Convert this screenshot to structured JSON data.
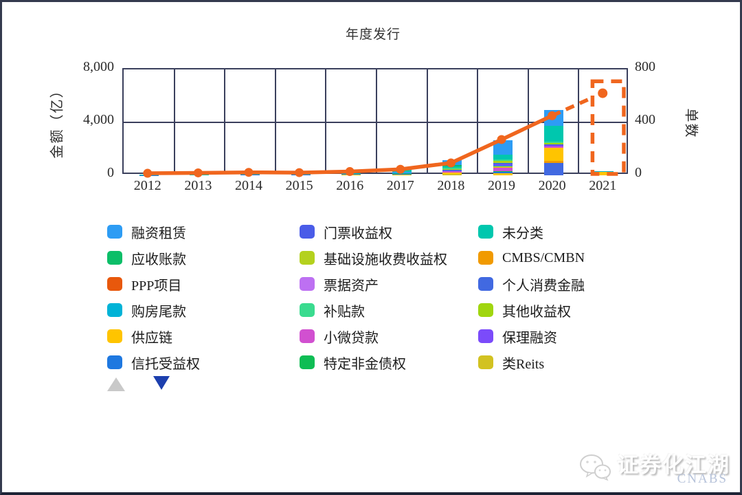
{
  "title": "年度发行",
  "chart_data": {
    "type": "combo",
    "bar_type": "stacked",
    "categories": [
      "2012",
      "2013",
      "2014",
      "2015",
      "2016",
      "2017",
      "2018",
      "2019",
      "2020",
      "2021"
    ],
    "left_axis": {
      "label": "金额（亿）",
      "max": 8000,
      "ticks": [
        {
          "v": 0,
          "label": "0"
        },
        {
          "v": 4000,
          "label": "4,000"
        },
        {
          "v": 8000,
          "label": "8,000"
        }
      ]
    },
    "right_axis": {
      "label": "单数",
      "max": 800,
      "ticks": [
        {
          "v": 0,
          "label": "0"
        },
        {
          "v": 400,
          "label": "400"
        },
        {
          "v": 800,
          "label": "800"
        }
      ]
    },
    "grid": true,
    "series_colors": {
      "融资租赁": "#2D9CF4",
      "应收账款": "#0CBE68",
      "PPP项目": "#E8580C",
      "购房尾款": "#00B3D7",
      "供应链": "#FFC400",
      "信托受益权": "#1E78E0",
      "门票收益权": "#4A5CE8",
      "基础设施收费收益权": "#B4D11E",
      "票据资产": "#BD70F2",
      "补贴款": "#3ADB8F",
      "小微贷款": "#D150D0",
      "特定非金债权": "#0EBD54",
      "未分类": "#00C7AE",
      "CMBS/CMBN": "#F19A00",
      "个人消费金融": "#4169E1",
      "其他收益权": "#A0D60F",
      "保理融资": "#7B4BFA",
      "类Reits": "#D2C221"
    },
    "stacks_bottom_to_top": {
      "2012": [
        [
          "信托受益权",
          20
        ],
        [
          "未分类",
          20
        ]
      ],
      "2013": [
        [
          "信托受益权",
          30
        ],
        [
          "未分类",
          30
        ]
      ],
      "2014": [
        [
          "信托受益权",
          40
        ],
        [
          "未分类",
          50
        ]
      ],
      "2015": [
        [
          "供应链",
          30
        ],
        [
          "信托受益权",
          30
        ],
        [
          "未分类",
          60
        ]
      ],
      "2016": [
        [
          "应收账款",
          30
        ],
        [
          "供应链",
          30
        ],
        [
          "信托受益权",
          40
        ],
        [
          "未分类",
          80
        ]
      ],
      "2017": [
        [
          "供应链",
          60
        ],
        [
          "信托受益权",
          50
        ],
        [
          "应收账款",
          60
        ],
        [
          "融资租赁",
          80
        ],
        [
          "未分类",
          180
        ]
      ],
      "2018": [
        [
          "类Reits",
          80
        ],
        [
          "供应链",
          120
        ],
        [
          "小微贷款",
          130
        ],
        [
          "个人消费金融",
          90
        ],
        [
          "基础设施收费收益权",
          60
        ],
        [
          "补贴款",
          70
        ],
        [
          "未分类",
          130
        ],
        [
          "应收账款",
          100
        ],
        [
          "融资租赁",
          350
        ]
      ],
      "2019": [
        [
          "供应链",
          140
        ],
        [
          "信托受益权",
          100
        ],
        [
          "特定非金债权",
          80
        ],
        [
          "小微贷款",
          230
        ],
        [
          "类Reits",
          110
        ],
        [
          "购房尾款",
          90
        ],
        [
          "保理融资",
          100
        ],
        [
          "个人消费金融",
          100
        ],
        [
          "基础设施收费收益权",
          70
        ],
        [
          "其他收益权",
          80
        ],
        [
          "补贴款",
          100
        ],
        [
          "未分类",
          350
        ],
        [
          "融资租赁",
          1100
        ]
      ],
      "2020": [
        [
          "个人消费金融",
          930
        ],
        [
          "CMBS/CMBN",
          180
        ],
        [
          "供应链",
          950
        ],
        [
          "小微贷款",
          100
        ],
        [
          "保理融资",
          100
        ],
        [
          "门票收益权",
          100
        ],
        [
          "其他收益权",
          80
        ],
        [
          "补贴款",
          90
        ],
        [
          "未分类",
          1200
        ],
        [
          "融资租赁",
          1200
        ]
      ],
      "2021": [
        [
          "供应链",
          260
        ],
        [
          "购房尾款",
          70
        ]
      ]
    },
    "bar_totals": {
      "2012": 40,
      "2013": 60,
      "2014": 90,
      "2015": 120,
      "2016": 180,
      "2017": 430,
      "2018": 1130,
      "2019": 2650,
      "2020": 4930,
      "2021": 330
    },
    "line": {
      "name": "单数",
      "color": "#F0661E",
      "values": [
        5,
        8,
        12,
        10,
        18,
        35,
        83,
        260,
        440,
        610
      ],
      "dashed_from_index": 8
    },
    "forecast_box": {
      "year": "2021",
      "top_value": 700,
      "color": "#F0661E"
    }
  },
  "legend": {
    "columns": [
      [
        "融资租赁",
        "应收账款",
        "PPP项目",
        "购房尾款",
        "供应链",
        "信托受益权"
      ],
      [
        "门票收益权",
        "基础设施收费收益权",
        "票据资产",
        "补贴款",
        "小微贷款",
        "特定非金债权"
      ],
      [
        "未分类",
        "CMBS/CMBN",
        "个人消费金融",
        "其他收益权",
        "保理融资",
        "类Reits"
      ]
    ]
  },
  "watermark": {
    "brand": "证券化江湖",
    "org": "CNABS"
  }
}
